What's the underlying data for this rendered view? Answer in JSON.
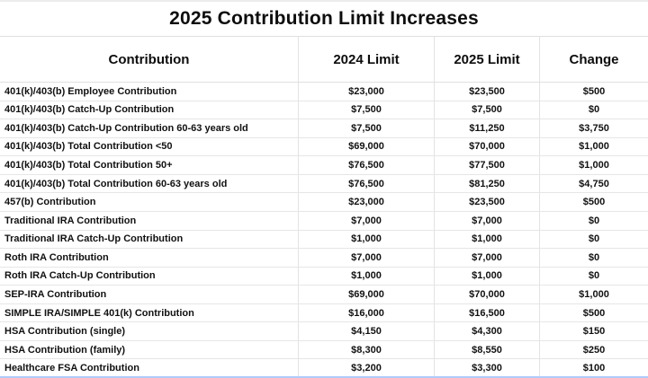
{
  "title": "2025 Contribution Limit Increases",
  "table": {
    "columns": [
      "Contribution",
      "2024 Limit",
      "2025 Limit",
      "Change"
    ],
    "rows": [
      {
        "label": "401(k)/403(b) Employee Contribution",
        "limit_2024": "$23,000",
        "limit_2025": "$23,500",
        "change": "$500"
      },
      {
        "label": "401(k)/403(b) Catch-Up Contribution",
        "limit_2024": "$7,500",
        "limit_2025": "$7,500",
        "change": "$0"
      },
      {
        "label": "401(k)/403(b) Catch-Up Contribution 60-63 years old",
        "limit_2024": "$7,500",
        "limit_2025": "$11,250",
        "change": "$3,750"
      },
      {
        "label": "401(k)/403(b) Total Contribution <50",
        "limit_2024": "$69,000",
        "limit_2025": "$70,000",
        "change": "$1,000"
      },
      {
        "label": "401(k)/403(b) Total Contribution 50+",
        "limit_2024": "$76,500",
        "limit_2025": "$77,500",
        "change": "$1,000"
      },
      {
        "label": "401(k)/403(b) Total Contribution 60-63 years old",
        "limit_2024": "$76,500",
        "limit_2025": "$81,250",
        "change": "$4,750"
      },
      {
        "label": "457(b) Contribution",
        "limit_2024": "$23,000",
        "limit_2025": "$23,500",
        "change": "$500"
      },
      {
        "label": "Traditional IRA Contribution",
        "limit_2024": "$7,000",
        "limit_2025": "$7,000",
        "change": "$0"
      },
      {
        "label": "Traditional IRA Catch-Up Contribution",
        "limit_2024": "$1,000",
        "limit_2025": "$1,000",
        "change": "$0"
      },
      {
        "label": "Roth IRA Contribution",
        "limit_2024": "$7,000",
        "limit_2025": "$7,000",
        "change": "$0"
      },
      {
        "label": "Roth IRA Catch-Up Contribution",
        "limit_2024": "$1,000",
        "limit_2025": "$1,000",
        "change": "$0"
      },
      {
        "label": "SEP-IRA Contribution",
        "limit_2024": "$69,000",
        "limit_2025": "$70,000",
        "change": "$1,000"
      },
      {
        "label": "SIMPLE IRA/SIMPLE 401(k) Contribution",
        "limit_2024": "$16,000",
        "limit_2025": "$16,500",
        "change": "$500"
      },
      {
        "label": "HSA Contribution (single)",
        "limit_2024": "$4,150",
        "limit_2025": "$4,300",
        "change": "$150"
      },
      {
        "label": "HSA Contribution (family)",
        "limit_2024": "$8,300",
        "limit_2025": "$8,550",
        "change": "$250"
      },
      {
        "label": "Healthcare FSA Contribution",
        "limit_2024": "$3,200",
        "limit_2025": "$3,300",
        "change": "$100"
      }
    ]
  },
  "colors": {
    "grid_line": "#e3e3e3",
    "selection_line": "#aecbfa",
    "text": "#000000",
    "background": "#ffffff"
  }
}
